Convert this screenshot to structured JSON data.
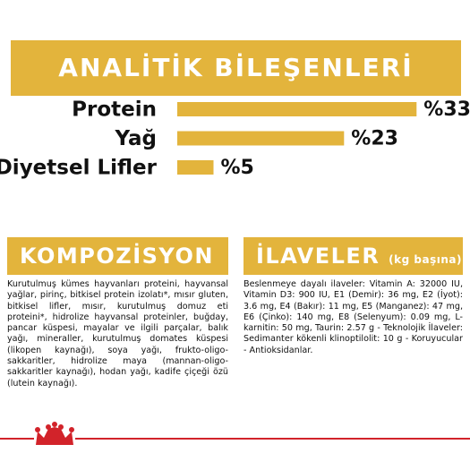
{
  "header": {
    "title": "ANALİTİK BİLEŞENLERİ"
  },
  "chart_data": {
    "type": "bar",
    "orientation": "horizontal",
    "categories": [
      "Protein",
      "Yağ",
      "Diyetsel Lifler"
    ],
    "values": [
      33,
      23,
      5
    ],
    "value_labels": [
      "%33",
      "%23",
      "%5"
    ],
    "color": "#e3b43c"
  },
  "composition": {
    "title": "KOMPOZİSYON",
    "text": "Kurutulmuş kümes hayvanları proteini, hayvansal yağlar, pirinç, bitkisel protein izolatı*, mısır gluten, bitkisel lifler, mısır, kurutulmuş domuz eti proteini*, hidrolize hayvansal proteinler, buğday, pancar küspesi, mayalar ve ilgili parçalar, balık yağı, mineraller, kurutulmuş domates küspesi (likopen kaynağı), soya yağı, frukto-oligo-sakkaritler, hidrolize maya (mannan-oligo-sakkaritler kaynağı), hodan yağı, kadife çiçeği özü (lutein kaynağı)."
  },
  "additives": {
    "title": "İLAVELER",
    "subtitle": "(kg başına)",
    "text": "Beslenmeye dayalı ilaveler: Vitamin A: 32000 IU, Vitamin D3: 900 IU, E1 (Demir): 36 mg, E2 (İyot): 3.6 mg, E4 (Bakır): 11 mg, E5 (Manganez): 47 mg, E6 (Çinko): 140 mg, E8 (Selenyum): 0.09 mg, L-karnitin: 50 mg, Taurin: 2.57 g - Teknolojik İlaveler: Sedimanter kökenli klinoptilolit: 10 g - Koruyucular - Antioksidanlar."
  }
}
